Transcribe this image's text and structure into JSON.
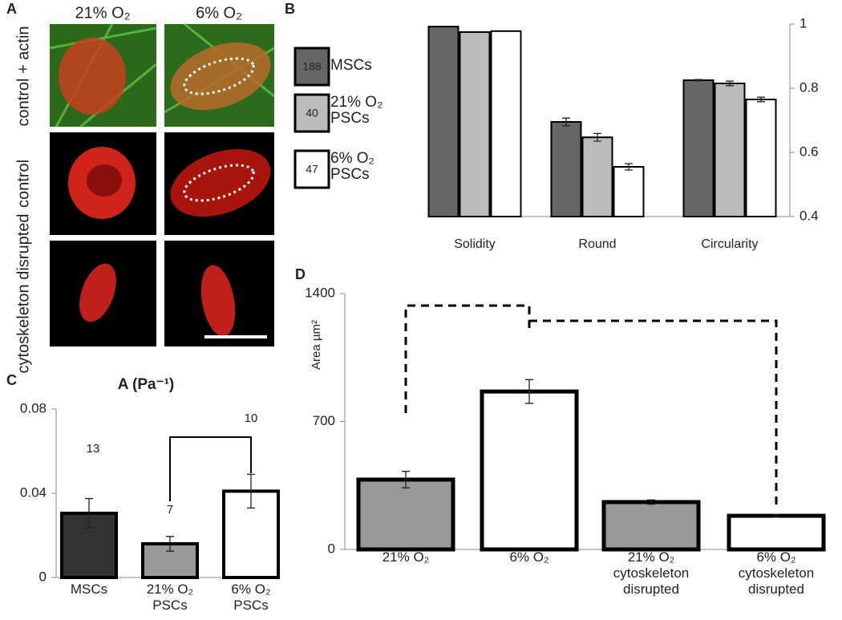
{
  "panel_labels": [
    "A",
    "B",
    "C",
    "D"
  ],
  "panel_a": {
    "columns": [
      "21% O₂",
      "6% O₂"
    ],
    "rows": [
      "control + actin",
      "control",
      "cytoskeleton disrupted"
    ]
  },
  "chart_data": [
    {
      "type": "bar",
      "categories": [
        "Solidity",
        "Round",
        "Circularity"
      ],
      "series": [
        {
          "name": "MSCs",
          "n": 188,
          "color": "#666666",
          "values": [
            0.992,
            0.695,
            0.825
          ],
          "errors": [
            null,
            0.012,
            0.002
          ]
        },
        {
          "name": "21% O₂ PSCs",
          "n": 40,
          "color": "#bbbbbb",
          "values": [
            0.975,
            0.647,
            0.815
          ],
          "errors": [
            null,
            0.012,
            0.007
          ]
        },
        {
          "name": "6% O₂ PSCs",
          "n": 47,
          "color": "#ffffff",
          "values": [
            0.978,
            0.555,
            0.765
          ],
          "errors": [
            null,
            0.01,
            0.007
          ]
        }
      ],
      "ylim": [
        0.4,
        1
      ],
      "yticks": [
        0.4,
        0.6,
        0.8,
        1
      ],
      "axis_side": "right"
    },
    {
      "type": "bar",
      "title": "A (Pa⁻¹)",
      "categories": [
        "MSCs",
        "21% O₂ PSCs",
        "6% O₂ PSCs"
      ],
      "values": [
        0.0305,
        0.016,
        0.041
      ],
      "errors": [
        0.007,
        0.0035,
        0.008
      ],
      "n": [
        13,
        7,
        10
      ],
      "colors": [
        "#333333",
        "#999999",
        "#ffffff"
      ],
      "ylim": [
        0,
        0.08
      ],
      "yticks": [
        0,
        0.04,
        0.08
      ],
      "axis_side": "left"
    },
    {
      "type": "bar",
      "ylabel": "Area µm²",
      "categories": [
        "21% O₂",
        "6% O₂",
        "21% O₂ cytoskeleton disrupted",
        "6% O₂ cytoskeleton disrupted"
      ],
      "values": [
        382,
        864,
        259,
        184
      ],
      "errors": [
        45,
        65,
        12,
        8
      ],
      "colors": [
        "#999999",
        "#ffffff",
        "#999999",
        "#ffffff"
      ],
      "ylim": [
        0,
        1400
      ],
      "yticks": [
        0,
        700,
        1400
      ],
      "axis_side": "left"
    }
  ]
}
